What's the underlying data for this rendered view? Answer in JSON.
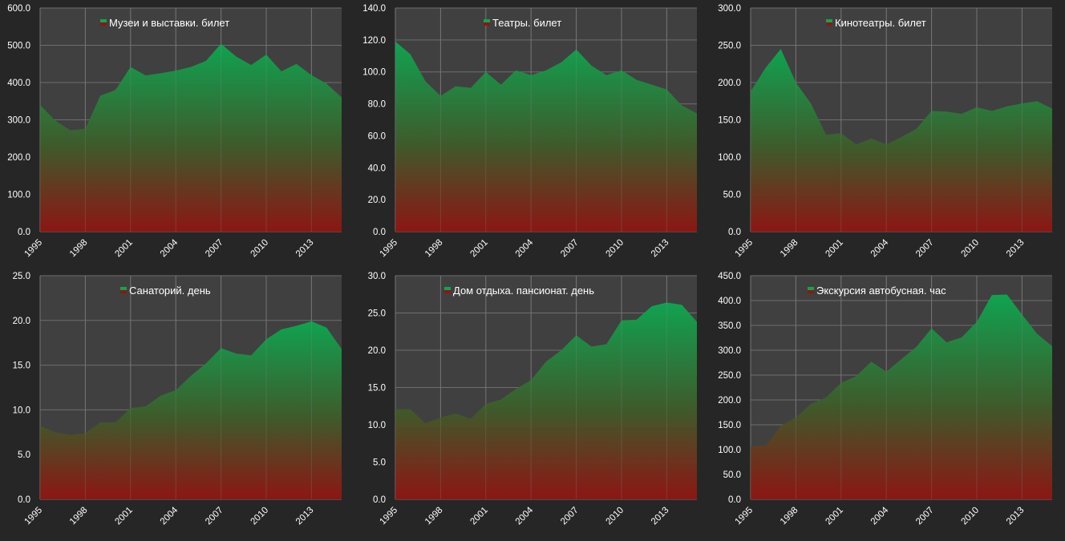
{
  "colors": {
    "background": "#262626",
    "plot_background": "#404040",
    "area_top": "#0ea651",
    "area_bottom": "#8e1512",
    "grid": "#6e6e6e",
    "text": "#ffffff"
  },
  "chart_data": [
    {
      "type": "area",
      "series_name": "Музеи и выставки. билет",
      "x": [
        1995,
        1996,
        1997,
        1998,
        1999,
        2000,
        2001,
        2002,
        2003,
        2004,
        2005,
        2006,
        2007,
        2008,
        2009,
        2010,
        2011,
        2012,
        2013,
        2014,
        2015
      ],
      "values": [
        340,
        298,
        272,
        276,
        365,
        380,
        442,
        419,
        425,
        432,
        442,
        458,
        504,
        470,
        447,
        475,
        430,
        450,
        420,
        397,
        360
      ],
      "ylim": [
        0,
        600
      ],
      "y_ticks": [
        "0.0",
        "100.0",
        "200.0",
        "300.0",
        "400.0",
        "500.0",
        "600.0"
      ],
      "x_ticks": [
        "1995",
        "1998",
        "2001",
        "2004",
        "2007",
        "2010",
        "2013"
      ],
      "grid": true,
      "legend_position": "top-center"
    },
    {
      "type": "area",
      "series_name": "Театры. билет",
      "x": [
        1995,
        1996,
        1997,
        1998,
        1999,
        2000,
        2001,
        2002,
        2003,
        2004,
        2005,
        2006,
        2007,
        2008,
        2009,
        2010,
        2011,
        2012,
        2013,
        2014,
        2015
      ],
      "values": [
        119,
        111,
        94,
        85,
        91,
        90,
        100,
        92,
        101,
        98,
        101,
        106,
        114,
        104,
        98,
        101,
        95,
        92,
        89,
        79,
        74
      ],
      "ylim": [
        0,
        140
      ],
      "y_ticks": [
        "0.0",
        "20.0",
        "40.0",
        "60.0",
        "80.0",
        "100.0",
        "120.0",
        "140.0"
      ],
      "x_ticks": [
        "1995",
        "1998",
        "2001",
        "2004",
        "2007",
        "2010",
        "2013"
      ],
      "grid": true,
      "legend_position": "top-center"
    },
    {
      "type": "area",
      "series_name": "Кинотеатры. билет",
      "x": [
        1995,
        1996,
        1997,
        1998,
        1999,
        2000,
        2001,
        2002,
        2003,
        2004,
        2005,
        2006,
        2007,
        2008,
        2009,
        2010,
        2011,
        2012,
        2013,
        2014,
        2015
      ],
      "values": [
        188,
        220,
        245,
        200,
        172,
        130,
        132,
        117,
        125,
        117,
        127,
        138,
        162,
        161,
        158,
        167,
        162,
        168,
        172,
        175,
        165
      ],
      "ylim": [
        0,
        300
      ],
      "y_ticks": [
        "0.0",
        "50.0",
        "100.0",
        "150.0",
        "200.0",
        "250.0",
        "300.0"
      ],
      "x_ticks": [
        "1995",
        "1998",
        "2001",
        "2004",
        "2007",
        "2010",
        "2013"
      ],
      "grid": true,
      "legend_position": "top-center"
    },
    {
      "type": "area",
      "series_name": "Санаторий. день",
      "x": [
        1995,
        1996,
        1997,
        1998,
        1999,
        2000,
        2001,
        2002,
        2003,
        2004,
        2005,
        2006,
        2007,
        2008,
        2009,
        2010,
        2011,
        2012,
        2013,
        2014,
        2015
      ],
      "values": [
        8.2,
        7.5,
        7.2,
        7.4,
        8.6,
        8.6,
        10.2,
        10.4,
        11.6,
        12.2,
        13.8,
        15.2,
        16.9,
        16.3,
        16.1,
        17.9,
        19.0,
        19.4,
        19.9,
        19.2,
        16.8
      ],
      "ylim": [
        0,
        25
      ],
      "y_ticks": [
        "0.0",
        "5.0",
        "10.0",
        "15.0",
        "20.0",
        "25.0"
      ],
      "x_ticks": [
        "1995",
        "1998",
        "2001",
        "2004",
        "2007",
        "2010",
        "2013"
      ],
      "grid": true,
      "legend_position": "top-center"
    },
    {
      "type": "area",
      "series_name": "Дом отдыха. пансионат. день",
      "x": [
        1995,
        1996,
        1997,
        1998,
        1999,
        2000,
        2001,
        2002,
        2003,
        2004,
        2005,
        2006,
        2007,
        2008,
        2009,
        2010,
        2011,
        2012,
        2013,
        2014,
        2015
      ],
      "values": [
        12.1,
        12.1,
        10.2,
        11.0,
        11.5,
        10.8,
        12.8,
        13.4,
        14.8,
        16.0,
        18.5,
        20.0,
        22.0,
        20.5,
        20.8,
        24.0,
        24.1,
        25.9,
        26.4,
        26.1,
        23.8
      ],
      "ylim": [
        0,
        30
      ],
      "y_ticks": [
        "0.0",
        "5.0",
        "10.0",
        "15.0",
        "20.0",
        "25.0",
        "30.0"
      ],
      "x_ticks": [
        "1995",
        "1998",
        "2001",
        "2004",
        "2007",
        "2010",
        "2013"
      ],
      "grid": true,
      "legend_position": "top-center"
    },
    {
      "type": "area",
      "series_name": "Экскурсия автобусная. час",
      "x": [
        1995,
        1996,
        1997,
        1998,
        1999,
        2000,
        2001,
        2002,
        2003,
        2004,
        2005,
        2006,
        2007,
        2008,
        2009,
        2010,
        2011,
        2012,
        2013,
        2014,
        2015
      ],
      "values": [
        107,
        108,
        148,
        165,
        192,
        205,
        234,
        248,
        277,
        257,
        282,
        307,
        344,
        316,
        326,
        357,
        411,
        412,
        372,
        333,
        308
      ],
      "ylim": [
        0,
        450
      ],
      "y_ticks": [
        "0.0",
        "50.0",
        "100.0",
        "150.0",
        "200.0",
        "250.0",
        "300.0",
        "350.0",
        "400.0",
        "450.0"
      ],
      "x_ticks": [
        "1995",
        "1998",
        "2001",
        "2004",
        "2007",
        "2010",
        "2013"
      ],
      "grid": true,
      "legend_position": "top-center"
    }
  ]
}
